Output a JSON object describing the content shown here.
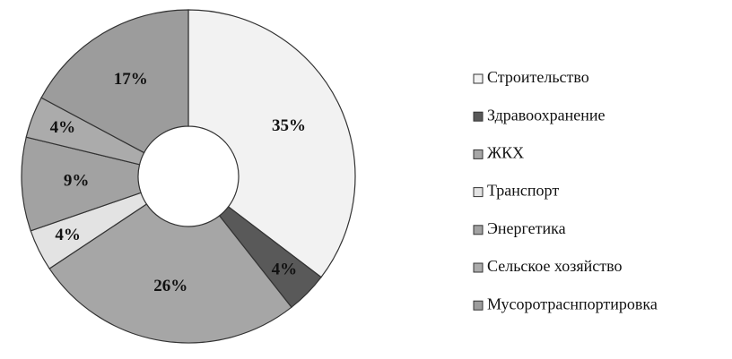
{
  "chart_data": {
    "type": "pie",
    "categories": [
      "Строительство",
      "Здравоохранение",
      "ЖКХ",
      "Транспорт",
      "Энергетика",
      "Сельское хозяйство",
      "Мусоротраснпортировка"
    ],
    "values": [
      35,
      4,
      26,
      4,
      9,
      4,
      17
    ],
    "value_labels": [
      "35%",
      "4%",
      "26%",
      "4%",
      "9%",
      "4%",
      "17%"
    ],
    "colors": [
      "#f2f2f2",
      "#595959",
      "#a6a6a6",
      "#e3e3e3",
      "#a2a2a2",
      "#ababab",
      "#9c9c9c"
    ],
    "donut": true
  }
}
